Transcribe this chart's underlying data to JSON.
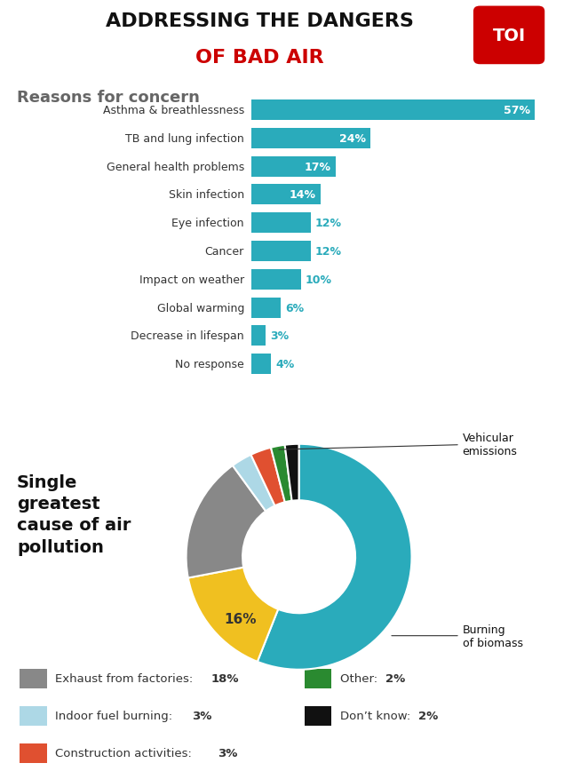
{
  "title_line1": "ADDRESSING THE DANGERS",
  "title_line2": "OF BAD AIR",
  "section1_title": "Reasons for concern",
  "bar_labels": [
    "Asthma & breathlessness",
    "TB and lung infection",
    "General health problems",
    "Skin infection",
    "Eye infection",
    "Cancer",
    "Impact on weather",
    "Global warming",
    "Decrease in lifespan",
    "No response"
  ],
  "bar_values": [
    57,
    24,
    17,
    14,
    12,
    12,
    10,
    6,
    3,
    4
  ],
  "bar_color": "#2aabbb",
  "bar_max": 60,
  "pie_values": [
    56,
    16,
    18,
    3,
    3,
    2,
    2
  ],
  "pie_colors": [
    "#2aabbb",
    "#f0c020",
    "#888888",
    "#add8e6",
    "#e05030",
    "#2a8a30",
    "#111111"
  ],
  "donut_bg": "#cfe8ee",
  "background_top": "#ffffff",
  "toi_color": "#cc0000",
  "legend_items": [
    {
      "label": "Exhaust from factories: ",
      "bold": "18%",
      "color": "#888888"
    },
    {
      "label": "Indoor fuel burning: ",
      "bold": "3%",
      "color": "#add8e6"
    },
    {
      "label": "Construction activities: ",
      "bold": "3%",
      "color": "#e05030"
    },
    {
      "label": "Other: ",
      "bold": "2%",
      "color": "#2a8a30"
    },
    {
      "label": "Don’t know: ",
      "bold": "2%",
      "color": "#111111"
    }
  ]
}
